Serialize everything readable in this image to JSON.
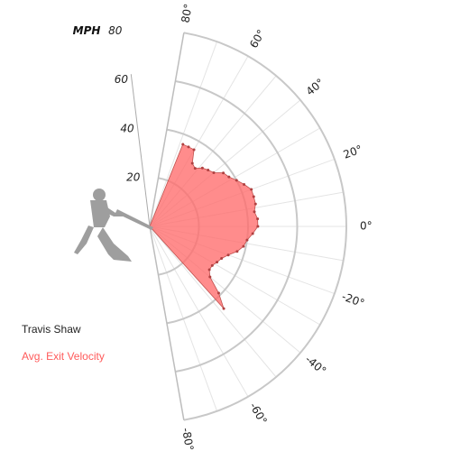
{
  "chart_data": {
    "type": "polar-area",
    "title": "",
    "player": "Travis Shaw",
    "series": [
      {
        "name": "Avg. Exit Velocity",
        "color": "#ff6b6b",
        "angles": [
          -48,
          -44,
          -40,
          -36,
          -32,
          -28,
          -24,
          -20,
          -16,
          -12,
          -8,
          -4,
          0,
          4,
          8,
          12,
          16,
          20,
          24,
          28,
          32,
          36,
          40,
          44,
          48,
          52,
          56,
          60,
          64,
          68
        ],
        "values": [
          45,
          39,
          32,
          30,
          30,
          31,
          32,
          34,
          37,
          39,
          40,
          42,
          44,
          44,
          43,
          44,
          44,
          44,
          42,
          40,
          38,
          37,
          34,
          33,
          32,
          30,
          31,
          36,
          36,
          36
        ]
      }
    ],
    "radial_axis": {
      "label": "MPH",
      "ticks": [
        20,
        40,
        60,
        80
      ],
      "max": 80
    },
    "angular_axis": {
      "ticks": [
        -80,
        -60,
        -40,
        -20,
        0,
        20,
        40,
        60,
        80
      ],
      "unit": "°"
    },
    "grid": true
  }
}
